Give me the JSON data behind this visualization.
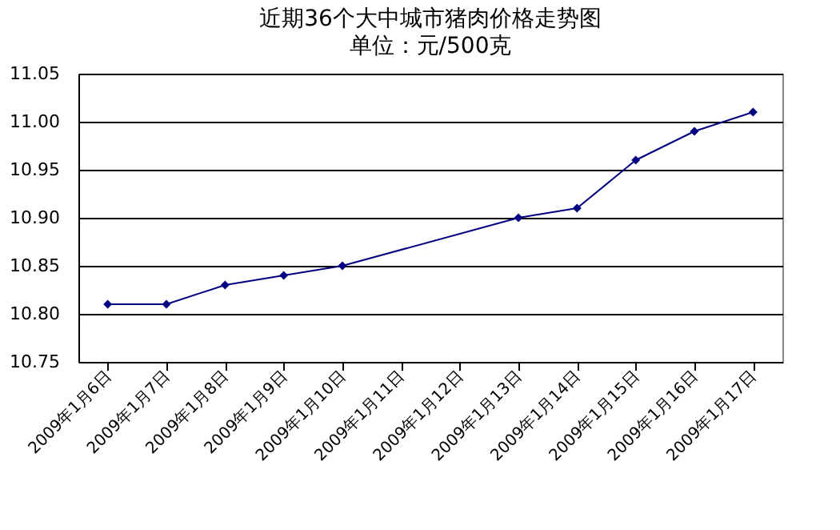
{
  "chart_data": {
    "type": "line",
    "title": "近期36个大中城市猪肉价格走势图",
    "subtitle": "单位：元/500克",
    "categories": [
      "2009年1月6日",
      "2009年1月7日",
      "2009年1月8日",
      "2009年1月9日",
      "2009年1月10日",
      "2009年1月11日",
      "2009年1月12日",
      "2009年1月13日",
      "2009年1月14日",
      "2009年1月15日",
      "2009年1月16日",
      "2009年1月17日"
    ],
    "series": [
      {
        "color": "#000080",
        "values": [
          10.81,
          10.81,
          10.83,
          10.84,
          10.85,
          null,
          null,
          10.9,
          10.91,
          10.96,
          10.99,
          11.01
        ]
      }
    ],
    "ylim": [
      10.75,
      11.05
    ],
    "yticks": [
      {
        "value": 10.75,
        "label": "10.75"
      },
      {
        "value": 10.8,
        "label": "10.80"
      },
      {
        "value": 10.85,
        "label": "10.85"
      },
      {
        "value": 10.9,
        "label": "10.90"
      },
      {
        "value": 10.95,
        "label": "10.95"
      },
      {
        "value": 11.0,
        "label": "11.00"
      },
      {
        "value": 11.05,
        "label": "11.05"
      }
    ],
    "grid": "y",
    "marker": "diamond",
    "line_style": "solid"
  }
}
